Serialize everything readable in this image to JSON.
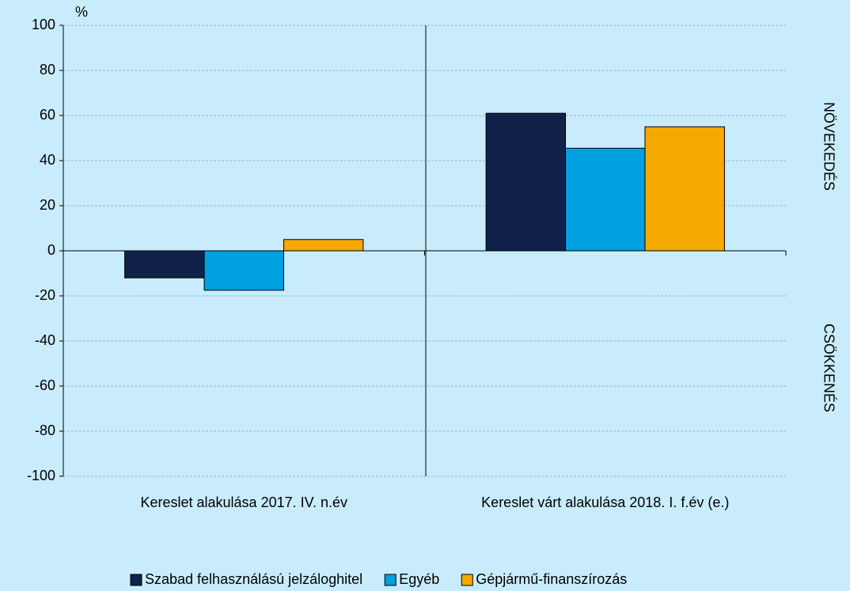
{
  "chart_data": {
    "type": "bar",
    "y_axis_label": "%",
    "categories": [
      "Kereslet alakulása 2017. IV. n.év",
      "Kereslet várt alakulása 2018. I. f.év (e.)"
    ],
    "series": [
      {
        "name": "Szabad felhasználású jelzáloghitel",
        "color": "#10224a",
        "values": [
          -12,
          61
        ]
      },
      {
        "name": "Egyéb",
        "color": "#009fdf",
        "values": [
          -17.5,
          45.5
        ]
      },
      {
        "name": "Gépjármű-finanszírozás",
        "color": "#f5a800",
        "values": [
          5,
          55
        ]
      }
    ],
    "ylim": [
      -100,
      100
    ],
    "yticks": [
      -100,
      -80,
      -60,
      -40,
      -20,
      0,
      20,
      40,
      60,
      80,
      100
    ],
    "grid": true,
    "annotations": [
      "NÖVEKEDÉS",
      "CSÖKKENÉS"
    ],
    "legend": "bottom"
  }
}
